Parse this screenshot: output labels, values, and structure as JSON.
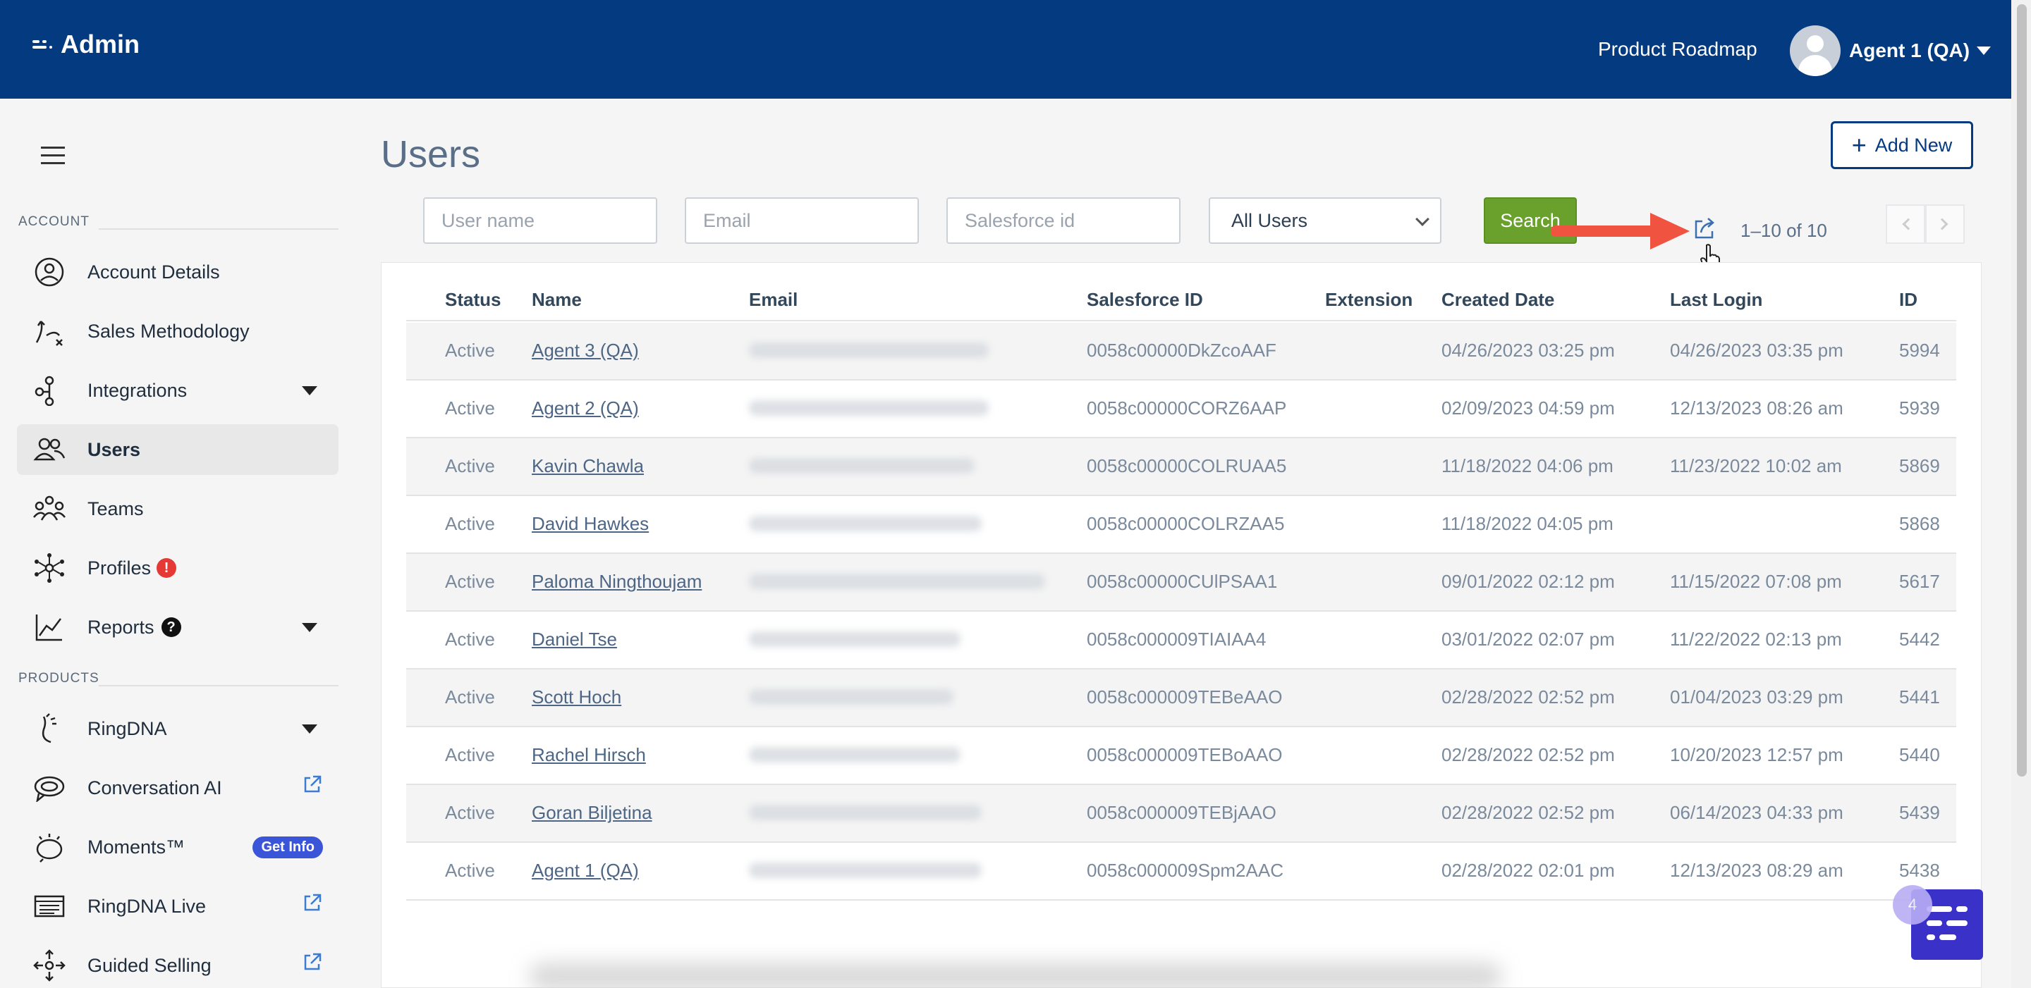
{
  "header": {
    "brand": "Admin",
    "product_roadmap": "Product Roadmap",
    "user_name": "Agent 1 (QA)"
  },
  "sidebar": {
    "account_label": "ACCOUNT",
    "products_label": "PRODUCTS",
    "account_items": [
      {
        "label": "Account Details",
        "icon": "user-circle-icon"
      },
      {
        "label": "Sales Methodology",
        "icon": "methodology-icon"
      },
      {
        "label": "Integrations",
        "icon": "integrations-icon"
      },
      {
        "label": "Users",
        "icon": "users-icon"
      },
      {
        "label": "Teams",
        "icon": "teams-icon"
      },
      {
        "label": "Profiles",
        "icon": "profiles-icon",
        "alert": "!"
      },
      {
        "label": "Reports",
        "icon": "chart-line-icon",
        "help": "?"
      }
    ],
    "product_items": [
      {
        "label": "RingDNA",
        "icon": "ringdna-icon"
      },
      {
        "label": "Conversation AI",
        "icon": "chat-bubble-icon"
      },
      {
        "label": "Moments™",
        "icon": "moments-icon",
        "badge": "Get Info"
      },
      {
        "label": "RingDNA Live",
        "icon": "live-icon"
      },
      {
        "label": "Guided Selling",
        "icon": "guided-selling-icon"
      }
    ]
  },
  "main": {
    "title": "Users",
    "add_new": "Add New",
    "filters": {
      "username_placeholder": "User name",
      "email_placeholder": "Email",
      "salesforce_placeholder": "Salesforce id",
      "user_type": "All Users",
      "search_label": "Search"
    },
    "pager": "1–10 of 10"
  },
  "table": {
    "columns": [
      "Status",
      "Name",
      "Email",
      "Salesforce ID",
      "Extension",
      "Created Date",
      "Last Login",
      "ID"
    ],
    "rows": [
      {
        "status": "Active",
        "name": "Agent 3 (QA)",
        "sfid": "0058c00000DkZcoAAF",
        "ext": "",
        "created": "04/26/2023 03:25 pm",
        "last": "04/26/2023 03:35 pm",
        "id": "5994"
      },
      {
        "status": "Active",
        "name": "Agent 2 (QA)",
        "sfid": "0058c00000CORZ6AAP",
        "ext": "",
        "created": "02/09/2023 04:59 pm",
        "last": "12/13/2023 08:26 am",
        "id": "5939"
      },
      {
        "status": "Active",
        "name": "Kavin Chawla",
        "sfid": "0058c00000COLRUAA5",
        "ext": "",
        "created": "11/18/2022 04:06 pm",
        "last": "11/23/2022 10:02 am",
        "id": "5869"
      },
      {
        "status": "Active",
        "name": "David Hawkes",
        "sfid": "0058c00000COLRZAA5",
        "ext": "",
        "created": "11/18/2022 04:05 pm",
        "last": "",
        "id": "5868"
      },
      {
        "status": "Active",
        "name": "Paloma Ningthoujam",
        "sfid": "0058c00000CUlPSAA1",
        "ext": "",
        "created": "09/01/2022 02:12 pm",
        "last": "11/15/2022 07:08 pm",
        "id": "5617"
      },
      {
        "status": "Active",
        "name": "Daniel Tse",
        "sfid": "0058c000009TIAIAA4",
        "ext": "",
        "created": "03/01/2022 02:07 pm",
        "last": "11/22/2022 02:13 pm",
        "id": "5442"
      },
      {
        "status": "Active",
        "name": "Scott Hoch",
        "sfid": "0058c000009TEBeAAO",
        "ext": "",
        "created": "02/28/2022 02:52 pm",
        "last": "01/04/2023 03:29 pm",
        "id": "5441"
      },
      {
        "status": "Active",
        "name": "Rachel Hirsch",
        "sfid": "0058c000009TEBoAAO",
        "ext": "",
        "created": "02/28/2022 02:52 pm",
        "last": "10/20/2023 12:57 pm",
        "id": "5440"
      },
      {
        "status": "Active",
        "name": "Goran Biljetina",
        "sfid": "0058c000009TEBjAAO",
        "ext": "",
        "created": "02/28/2022 02:52 pm",
        "last": "06/14/2023 04:33 pm",
        "id": "5439"
      },
      {
        "status": "Active",
        "name": "Agent 1 (QA)",
        "sfid": "0058c000009Spm2AAC",
        "ext": "",
        "created": "02/28/2022 02:01 pm",
        "last": "12/13/2023 08:29 am",
        "id": "5438"
      }
    ]
  },
  "widget": {
    "count": "4"
  },
  "colors": {
    "header_bg": "#033a80",
    "search_btn": "#6aa12c",
    "accent_arrow": "#f0533f",
    "badge": "#3b55d9"
  }
}
